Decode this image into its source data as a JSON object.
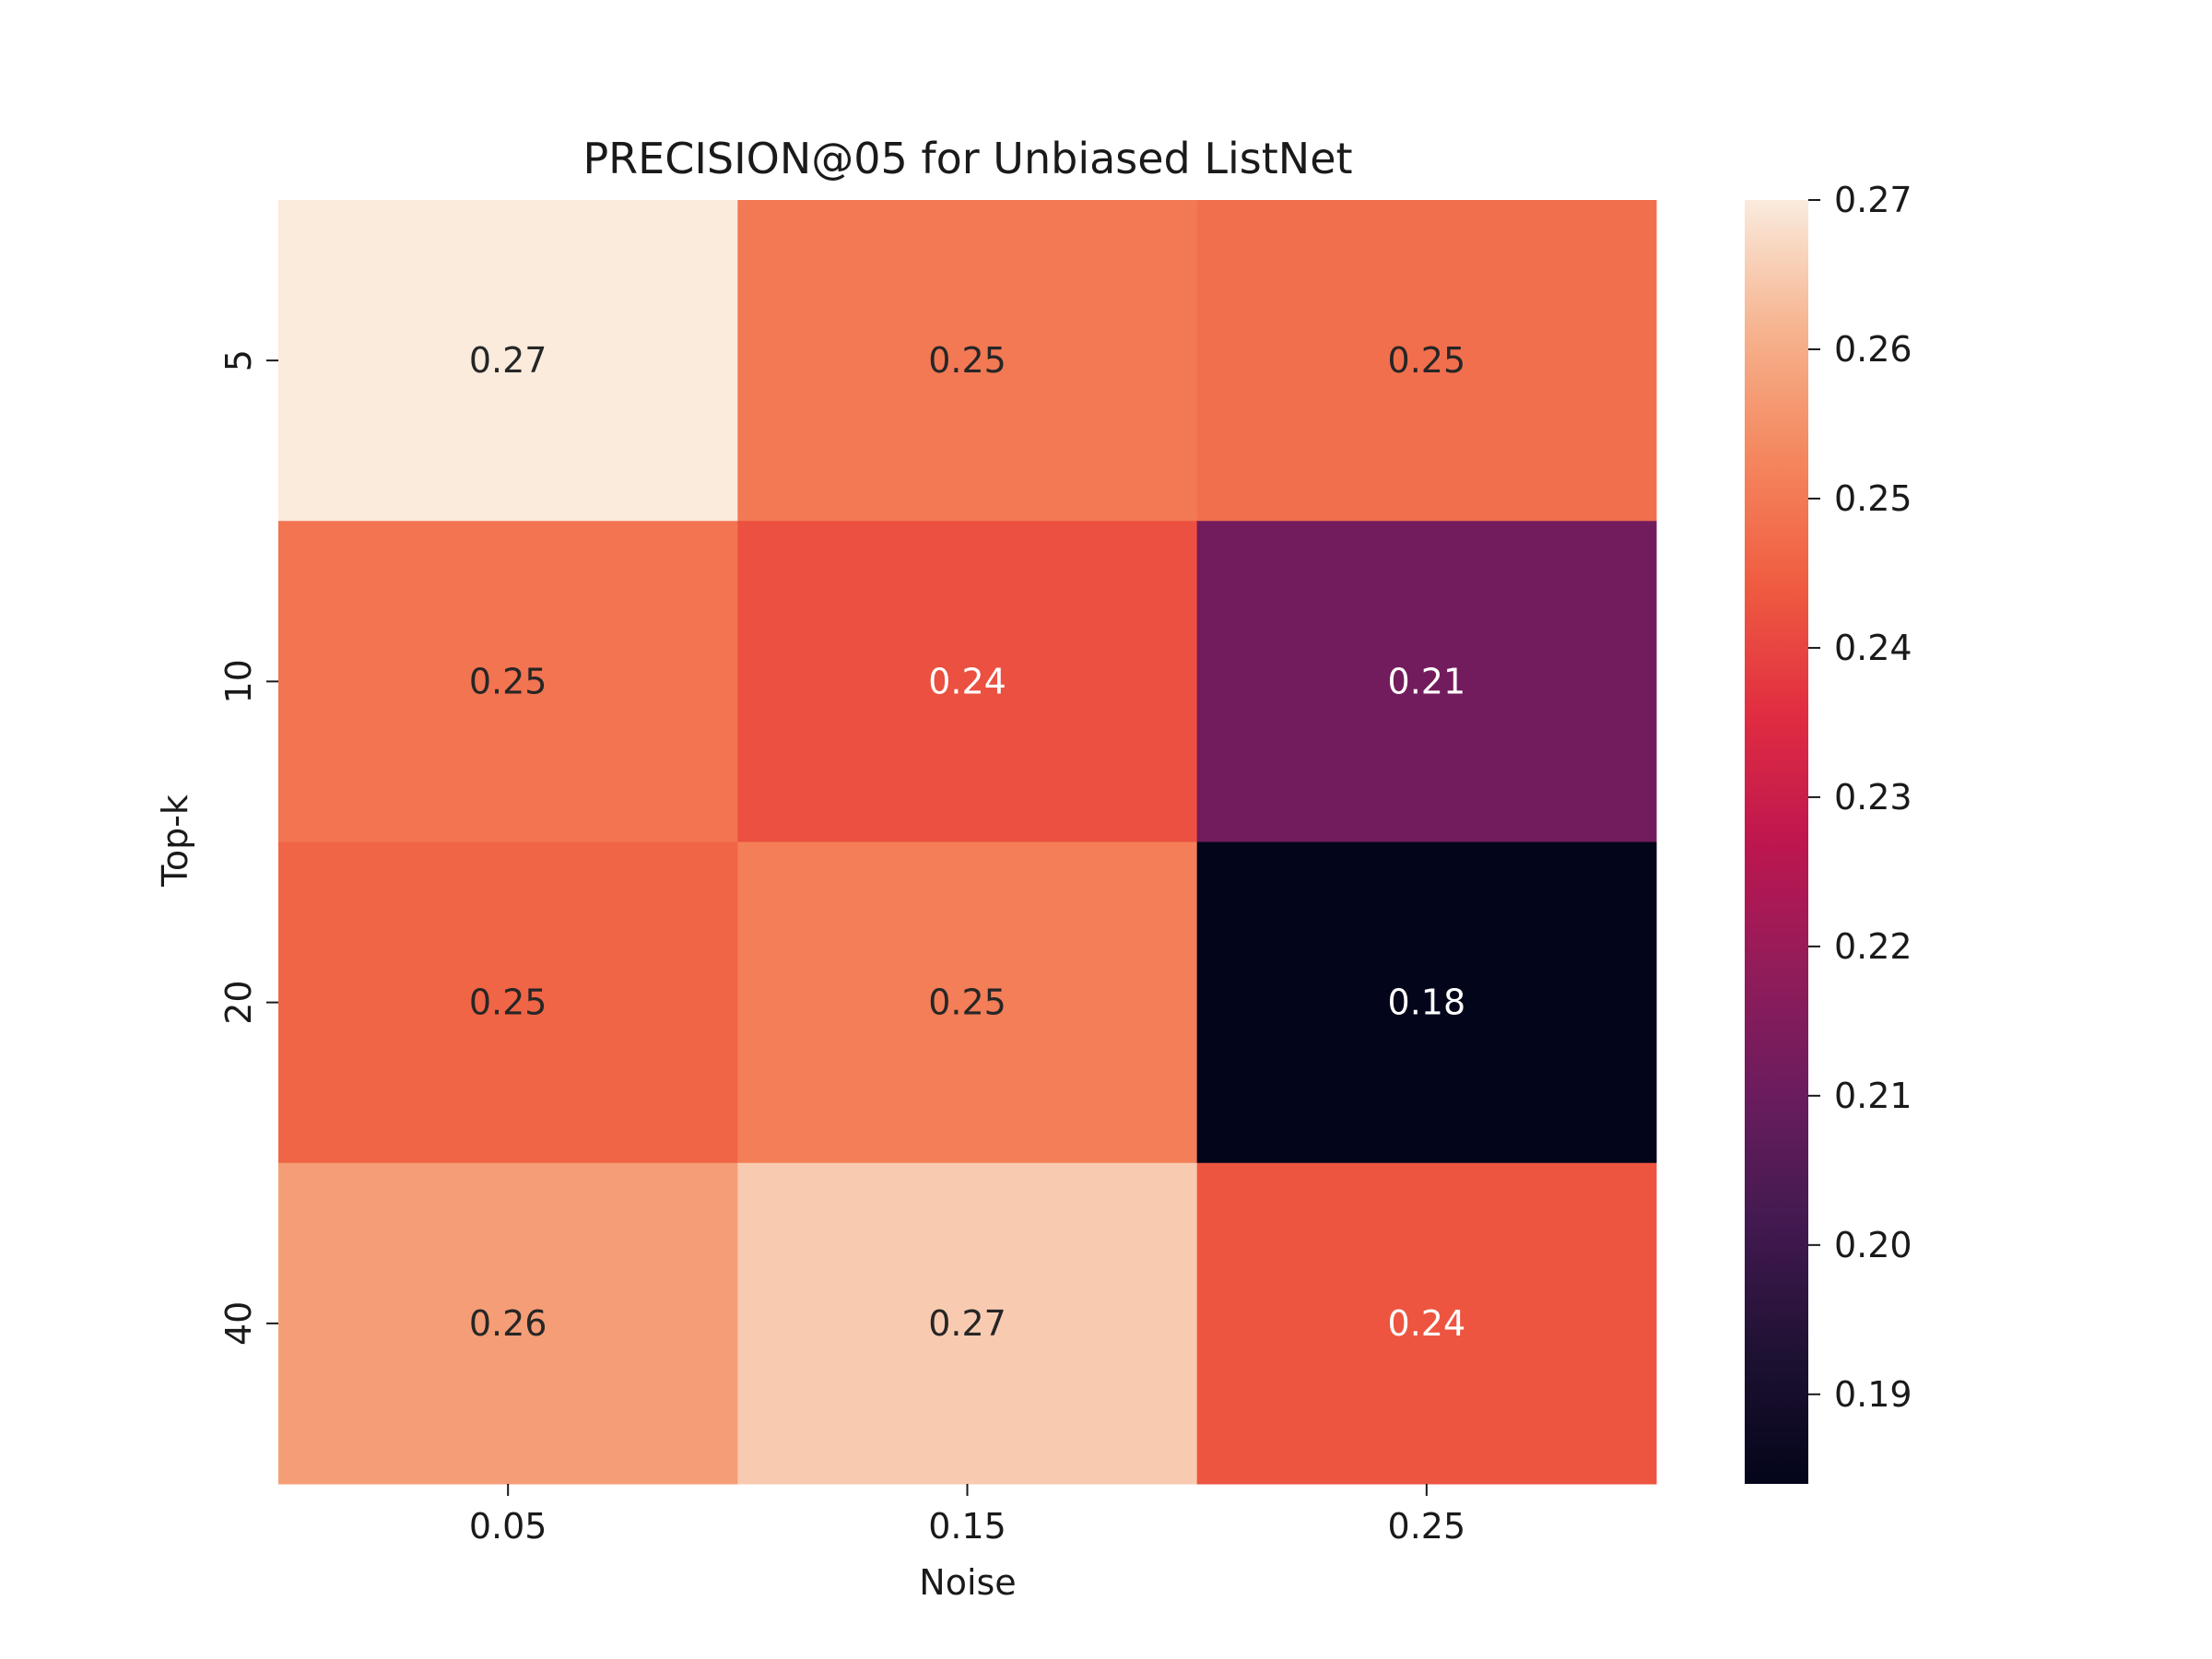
{
  "chart_data": {
    "type": "heatmap",
    "title": "PRECISION@05 for Unbiased ListNet",
    "xlabel": "Noise",
    "ylabel": "Top-k",
    "x_categories": [
      "0.05",
      "0.15",
      "0.25"
    ],
    "y_categories": [
      "5",
      "10",
      "20",
      "40"
    ],
    "values": [
      [
        0.27,
        0.25,
        0.248
      ],
      [
        0.249,
        0.242,
        0.212
      ],
      [
        0.246,
        0.251,
        0.184
      ],
      [
        0.257,
        0.265,
        0.243
      ]
    ],
    "annotations": [
      [
        "0.27",
        "0.25",
        "0.25"
      ],
      [
        "0.25",
        "0.24",
        "0.21"
      ],
      [
        "0.25",
        "0.25",
        "0.18"
      ],
      [
        "0.26",
        "0.27",
        "0.24"
      ]
    ],
    "colorbar": {
      "min": 0.184,
      "max": 0.27,
      "ticks": [
        "0.19",
        "0.20",
        "0.21",
        "0.22",
        "0.23",
        "0.24",
        "0.25",
        "0.26",
        "0.27"
      ]
    },
    "colormap": "rocket",
    "grid": false,
    "legend": "colorbar-right"
  }
}
